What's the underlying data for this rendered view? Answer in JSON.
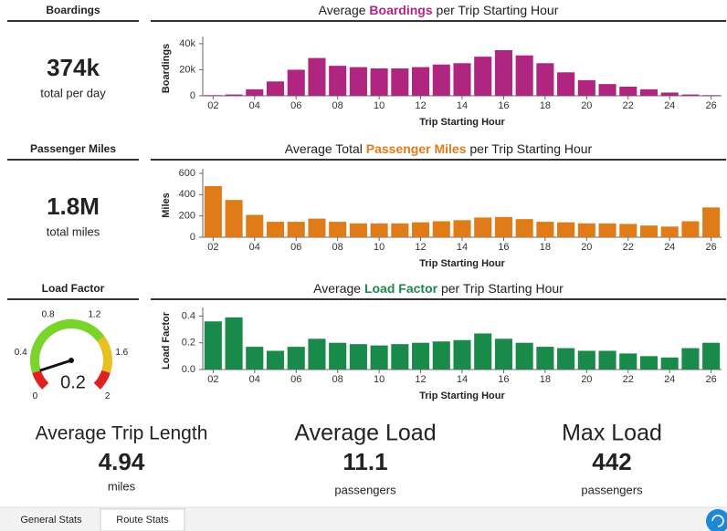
{
  "kpis": [
    {
      "header": "Boardings",
      "color": "#b0257f",
      "value": "374k",
      "unit": "total per day"
    },
    {
      "header": "Passenger Miles",
      "color": "#e07b1a",
      "value": "1.8M",
      "unit": "total miles"
    },
    {
      "header": "Load Factor",
      "color": "#1a8a4a",
      "gauge": {
        "type": "gauge",
        "value": 0.2,
        "value_label": "0.2",
        "lim": [
          0,
          2
        ],
        "ticks": [
          0,
          0.4,
          0.8,
          1.2,
          1.6,
          2
        ]
      }
    }
  ],
  "chart_data": [
    {
      "type": "bar",
      "title": [
        "Average ",
        "Boardings",
        " per Trip Starting Hour"
      ],
      "color": "#b0257f",
      "xlabel": "Trip Starting Hour",
      "ylabel": "Boardings",
      "categories": [
        "02",
        null,
        "04",
        null,
        "06",
        null,
        "08",
        null,
        "10",
        null,
        "12",
        null,
        "14",
        null,
        "16",
        null,
        "18",
        null,
        "20",
        null,
        "22",
        null,
        "24",
        null,
        "26"
      ],
      "values": [
        500,
        1000,
        5000,
        11000,
        20000,
        29000,
        23000,
        22000,
        21000,
        21000,
        22000,
        24000,
        25000,
        30000,
        35000,
        31000,
        25000,
        18000,
        12000,
        9000,
        7000,
        5000,
        2500,
        1000,
        500
      ],
      "ylim": [
        0,
        42000
      ],
      "yticks": [
        0,
        {
          "value": 20000,
          "label": "20k"
        },
        {
          "value": 40000,
          "label": "40k"
        }
      ]
    },
    {
      "type": "bar",
      "title": [
        "Average Total ",
        "Passenger Miles",
        " per Trip Starting Hour"
      ],
      "color": "#e07b1a",
      "xlabel": "Trip Starting Hour",
      "ylabel": "Miles",
      "categories": [
        "02",
        null,
        "04",
        null,
        "06",
        null,
        "08",
        null,
        "10",
        null,
        "12",
        null,
        "14",
        null,
        "16",
        null,
        "18",
        null,
        "20",
        null,
        "22",
        null,
        "24",
        null,
        "26"
      ],
      "values": [
        480,
        350,
        210,
        145,
        145,
        175,
        145,
        130,
        130,
        130,
        140,
        150,
        160,
        185,
        190,
        170,
        145,
        140,
        130,
        130,
        125,
        110,
        100,
        150,
        280
      ],
      "ylim": [
        0,
        600
      ],
      "yticks": [
        0,
        200,
        400,
        600
      ]
    },
    {
      "type": "bar",
      "title": [
        "Average ",
        "Load Factor",
        " per Trip Starting Hour"
      ],
      "color": "#1a8a4a",
      "xlabel": "Trip Starting Hour",
      "ylabel": "Load Factor",
      "categories": [
        "02",
        null,
        "04",
        null,
        "06",
        null,
        "08",
        null,
        "10",
        null,
        "12",
        null,
        "14",
        null,
        "16",
        null,
        "18",
        null,
        "20",
        null,
        "22",
        null,
        "24",
        null,
        "26"
      ],
      "values": [
        0.36,
        0.39,
        0.17,
        0.14,
        0.17,
        0.23,
        0.2,
        0.19,
        0.18,
        0.19,
        0.2,
        0.21,
        0.22,
        0.27,
        0.23,
        0.2,
        0.17,
        0.16,
        0.14,
        0.14,
        0.12,
        0.1,
        0.09,
        0.16,
        0.2
      ],
      "ylim": [
        0,
        0.43
      ],
      "yticks": [
        {
          "value": 0,
          "label": "0.0"
        },
        0.2,
        0.4
      ]
    }
  ],
  "stats": [
    {
      "label": "Average Trip Length",
      "value": "4.94",
      "unit": "miles"
    },
    {
      "label": "Average Load",
      "value": "11.1",
      "unit": "passengers"
    },
    {
      "label": "Max Load",
      "value": "442",
      "unit": "passengers"
    }
  ],
  "tabs": [
    "General Stats",
    "Route Stats"
  ]
}
